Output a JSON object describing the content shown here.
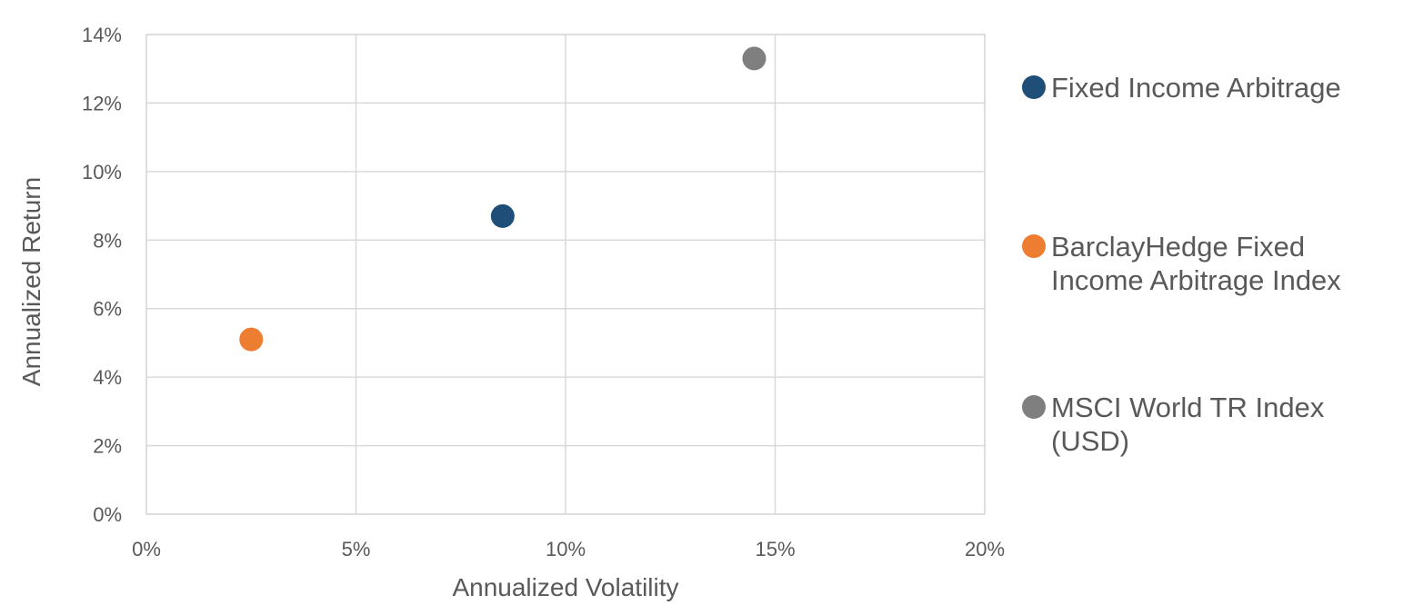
{
  "chart_data": {
    "type": "scatter",
    "title": "",
    "xlabel": "Annualized Volatility",
    "ylabel": "Annualized Return",
    "xlim": [
      0,
      20
    ],
    "ylim": [
      0,
      14
    ],
    "x_ticks": [
      "0%",
      "5%",
      "10%",
      "15%",
      "20%"
    ],
    "y_ticks": [
      "0%",
      "2%",
      "4%",
      "6%",
      "8%",
      "10%",
      "12%",
      "14%"
    ],
    "grid": true,
    "legend_position": "right",
    "series": [
      {
        "name": "Fixed Income Arbitrage",
        "color": "#1f4e79",
        "x": 8.5,
        "y": 8.7
      },
      {
        "name": "BarclayHedge Fixed Income Arbitrage Index",
        "color": "#ed7d31",
        "x": 2.5,
        "y": 5.1
      },
      {
        "name": "MSCI World TR Index (USD)",
        "color": "#7f7f7f",
        "x": 14.5,
        "y": 13.3
      }
    ]
  }
}
